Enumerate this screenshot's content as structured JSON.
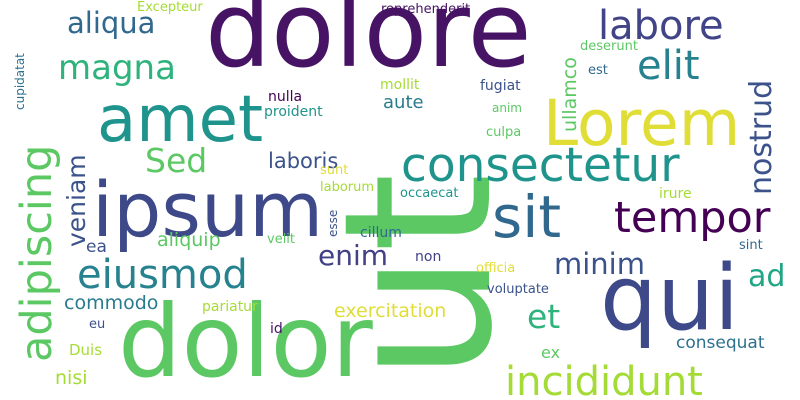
{
  "background": "#ffffff",
  "words": [
    {
      "text": "ut",
      "color": "#5cc863",
      "orientation": "vertical"
    },
    {
      "text": "dolore",
      "color": "#471365",
      "orientation": "horizontal"
    },
    {
      "text": "dolor",
      "color": "#5cc863",
      "orientation": "horizontal"
    },
    {
      "text": "ipsum",
      "color": "#3e4989",
      "orientation": "horizontal"
    },
    {
      "text": "qui",
      "color": "#3e4989",
      "orientation": "horizontal"
    },
    {
      "text": "amet",
      "color": "#1f948c",
      "orientation": "horizontal"
    },
    {
      "text": "Lorem",
      "color": "#e1dd37",
      "orientation": "horizontal"
    },
    {
      "text": "sit",
      "color": "#31688e",
      "orientation": "horizontal"
    },
    {
      "text": "consectetur",
      "color": "#1f948c",
      "orientation": "horizontal"
    },
    {
      "text": "adipiscing",
      "color": "#5cc863",
      "orientation": "vertical"
    },
    {
      "text": "tempor",
      "color": "#440154",
      "orientation": "horizontal"
    },
    {
      "text": "eiusmod",
      "color": "#26828e",
      "orientation": "horizontal"
    },
    {
      "text": "incididunt",
      "color": "#a5db36",
      "orientation": "horizontal"
    },
    {
      "text": "labore",
      "color": "#414487",
      "orientation": "horizontal"
    },
    {
      "text": "elit",
      "color": "#26828e",
      "orientation": "horizontal"
    },
    {
      "text": "magna",
      "color": "#2eb37c",
      "orientation": "horizontal"
    },
    {
      "text": "Sed",
      "color": "#5cc863",
      "orientation": "horizontal"
    },
    {
      "text": "aliqua",
      "color": "#31688e",
      "orientation": "horizontal"
    },
    {
      "text": "nostrud",
      "color": "#3b528b",
      "orientation": "vertical"
    },
    {
      "text": "veniam",
      "color": "#3b528b",
      "orientation": "vertical"
    },
    {
      "text": "et",
      "color": "#2eb37c",
      "orientation": "horizontal"
    },
    {
      "text": "minim",
      "color": "#3b528b",
      "orientation": "horizontal"
    },
    {
      "text": "enim",
      "color": "#424186",
      "orientation": "horizontal"
    },
    {
      "text": "ad",
      "color": "#21a685",
      "orientation": "horizontal"
    },
    {
      "text": "ullamco",
      "color": "#5cc863",
      "orientation": "vertical"
    },
    {
      "text": "laboris",
      "color": "#3b528b",
      "orientation": "horizontal"
    },
    {
      "text": "aliquip",
      "color": "#5cc863",
      "orientation": "horizontal"
    },
    {
      "text": "commodo",
      "color": "#287c8e",
      "orientation": "horizontal"
    },
    {
      "text": "exercitation",
      "color": "#e1dd37",
      "orientation": "horizontal"
    },
    {
      "text": "consequat",
      "color": "#2d718e",
      "orientation": "horizontal"
    },
    {
      "text": "ea",
      "color": "#3b528b",
      "orientation": "horizontal"
    },
    {
      "text": "nisi",
      "color": "#a5db36",
      "orientation": "horizontal"
    },
    {
      "text": "Duis",
      "color": "#a5db36",
      "orientation": "horizontal"
    },
    {
      "text": "ex",
      "color": "#5cc863",
      "orientation": "horizontal"
    },
    {
      "text": "aute",
      "color": "#287c8e",
      "orientation": "horizontal"
    },
    {
      "text": "Excepteur",
      "color": "#a5db36",
      "orientation": "horizontal"
    },
    {
      "text": "reprehenderit",
      "color": "#471365",
      "orientation": "horizontal"
    },
    {
      "text": "deserunt",
      "color": "#5cc863",
      "orientation": "horizontal"
    },
    {
      "text": "est",
      "color": "#31688e",
      "orientation": "horizontal"
    },
    {
      "text": "mollit",
      "color": "#a5db36",
      "orientation": "horizontal"
    },
    {
      "text": "fugiat",
      "color": "#3b528b",
      "orientation": "horizontal"
    },
    {
      "text": "anim",
      "color": "#5cc863",
      "orientation": "horizontal"
    },
    {
      "text": "culpa",
      "color": "#5cc863",
      "orientation": "horizontal"
    },
    {
      "text": "nulla",
      "color": "#440154",
      "orientation": "horizontal"
    },
    {
      "text": "proident",
      "color": "#1f948c",
      "orientation": "horizontal"
    },
    {
      "text": "sunt",
      "color": "#e1dd37",
      "orientation": "horizontal"
    },
    {
      "text": "laborum",
      "color": "#a5db36",
      "orientation": "horizontal"
    },
    {
      "text": "occaecat",
      "color": "#1f948c",
      "orientation": "horizontal"
    },
    {
      "text": "irure",
      "color": "#a5db36",
      "orientation": "horizontal"
    },
    {
      "text": "esse",
      "color": "#3b528b",
      "orientation": "vertical"
    },
    {
      "text": "cillum",
      "color": "#31688e",
      "orientation": "horizontal"
    },
    {
      "text": "non",
      "color": "#424186",
      "orientation": "horizontal"
    },
    {
      "text": "velit",
      "color": "#5cc863",
      "orientation": "horizontal"
    },
    {
      "text": "sint",
      "color": "#31688e",
      "orientation": "horizontal"
    },
    {
      "text": "officia",
      "color": "#e1dd37",
      "orientation": "horizontal"
    },
    {
      "text": "voluptate",
      "color": "#3b528b",
      "orientation": "horizontal"
    },
    {
      "text": "pariatur",
      "color": "#a5db36",
      "orientation": "horizontal"
    },
    {
      "text": "id",
      "color": "#471365",
      "orientation": "horizontal"
    },
    {
      "text": "eu",
      "color": "#3b528b",
      "orientation": "horizontal"
    },
    {
      "text": "cupidatat",
      "color": "#2d718e",
      "orientation": "vertical"
    }
  ]
}
